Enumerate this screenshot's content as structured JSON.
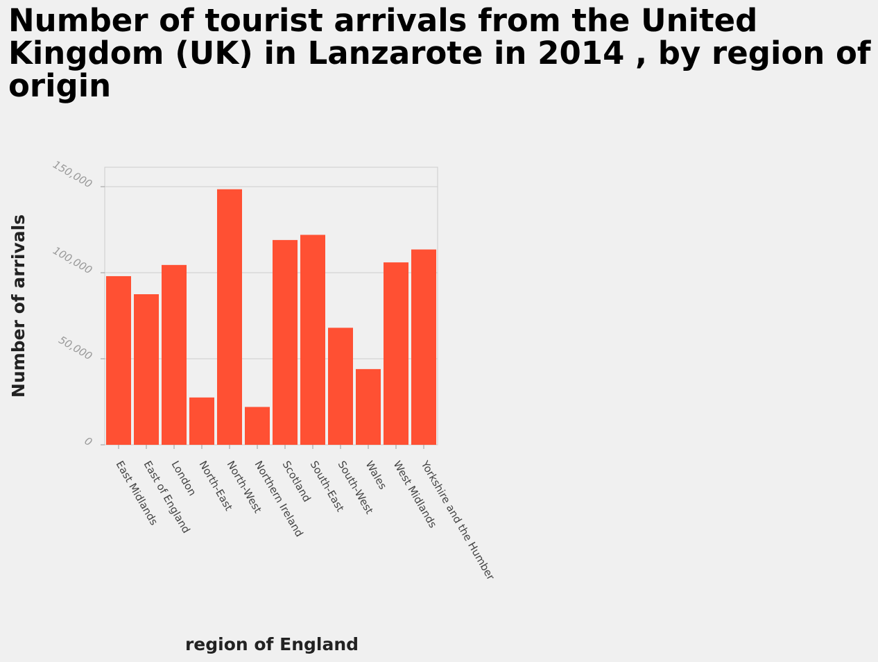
{
  "chart_data": {
    "type": "bar",
    "title": "Number of tourist arrivals from the United Kingdom (UK) in Lanzarote in 2014 , by region of origin",
    "xlabel": "region of England",
    "ylabel": "Number of arrivals",
    "categories": [
      "East Midlands",
      "East of England",
      "London",
      "North-East",
      "North-West",
      "Northern Ireland",
      "Scotland",
      "South-East",
      "South-West",
      "Wales",
      "West Midlands",
      "Yorkshire and the Humber"
    ],
    "values": [
      98000,
      87500,
      104500,
      27500,
      148500,
      22000,
      119000,
      122000,
      68000,
      44000,
      106000,
      113500
    ],
    "ylim": [
      0,
      150000
    ],
    "yticks": [
      0,
      50000,
      100000,
      150000
    ],
    "ytick_labels": [
      "0",
      "50,000",
      "100,000",
      "150,000"
    ],
    "grid": true,
    "bar_color": "#ff5033"
  }
}
